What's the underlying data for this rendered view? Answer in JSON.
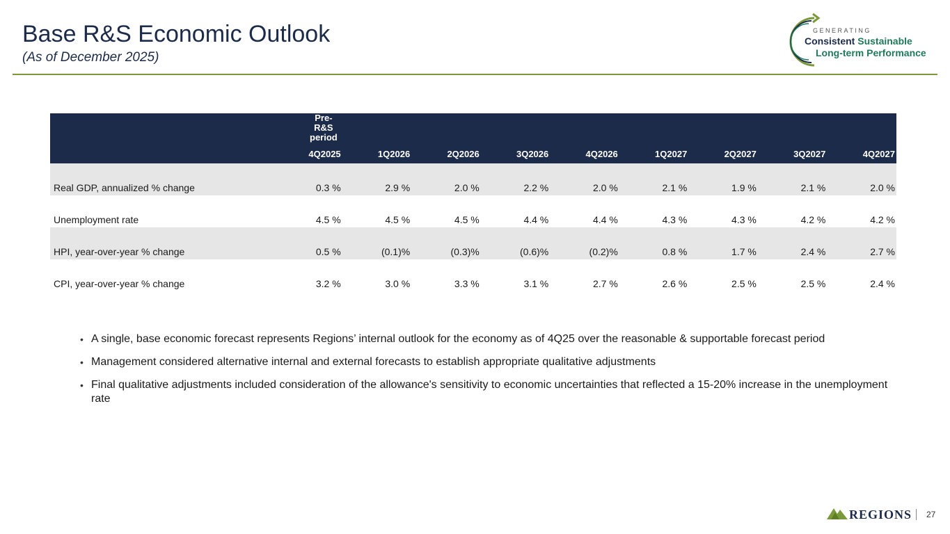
{
  "header": {
    "title": "Base R&S Economic Outlook",
    "subtitle": "(As of December 2025)"
  },
  "brand_logo": {
    "line0": "GENERATING",
    "line1a": "Consistent",
    "line1b": "Sustainable",
    "line2": "Long-term Performance"
  },
  "table": {
    "pre_label": "Pre-R&S period",
    "columns": [
      "4Q2025",
      "1Q2026",
      "2Q2026",
      "3Q2026",
      "4Q2026",
      "1Q2027",
      "2Q2027",
      "3Q2027",
      "4Q2027"
    ],
    "rows": [
      {
        "label": "Real GDP, annualized % change",
        "values": [
          "0.3 %",
          "2.9 %",
          "2.0 %",
          "2.2 %",
          "2.0 %",
          "2.1 %",
          "1.9 %",
          "2.1 %",
          "2.0 %"
        ]
      },
      {
        "label": "Unemployment rate",
        "values": [
          "4.5 %",
          "4.5 %",
          "4.5 %",
          "4.4 %",
          "4.4 %",
          "4.3 %",
          "4.3 %",
          "4.2 %",
          "4.2 %"
        ]
      },
      {
        "label": "HPI, year-over-year % change",
        "values": [
          "0.5 %",
          "(0.1)%",
          "(0.3)%",
          "(0.6)%",
          "(0.2)%",
          "0.8 %",
          "1.7 %",
          "2.4 %",
          "2.7 %"
        ]
      },
      {
        "label": "CPI, year-over-year % change",
        "values": [
          "3.2 %",
          "3.0 %",
          "3.3 %",
          "3.1 %",
          "2.7 %",
          "2.6 %",
          "2.5 %",
          "2.5 %",
          "2.4 %"
        ]
      }
    ]
  },
  "bullets": [
    "A single, base economic forecast represents Regions’ internal outlook for the economy as of 4Q25 over the reasonable & supportable forecast period",
    "Management considered alternative internal and external forecasts to establish appropriate qualitative adjustments",
    "Final qualitative adjustments included consideration of the allowance's sensitivity to economic uncertainties that reflected a 15-20% increase in the unemployment rate"
  ],
  "footer": {
    "brand": "REGIONS",
    "page_number": "27"
  },
  "colors": {
    "navy": "#1c2b4a",
    "green": "#1f7a5a",
    "rule": "#7a9a3a",
    "shade": "#e6e6e6"
  }
}
